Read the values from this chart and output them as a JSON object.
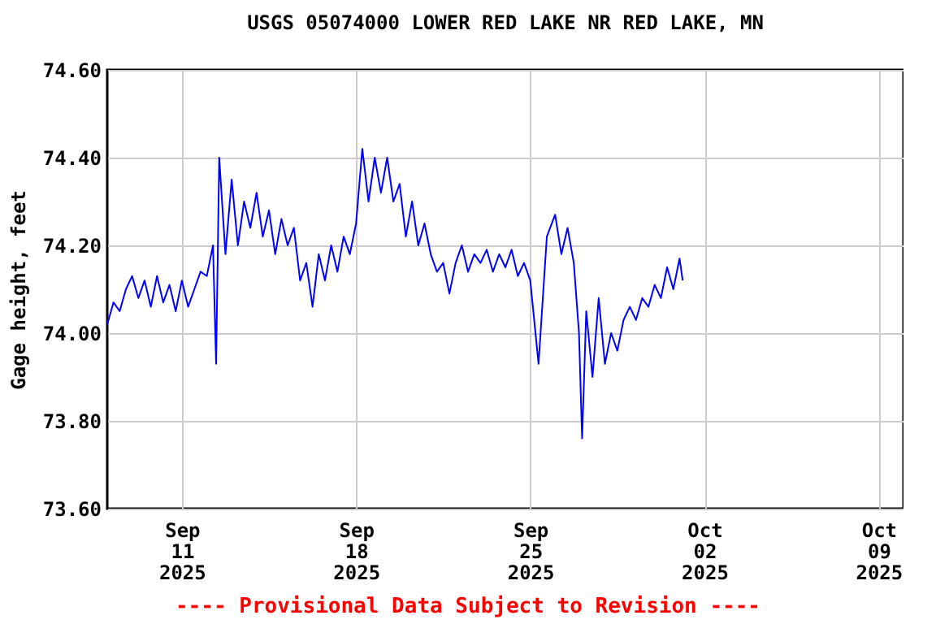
{
  "chart_data": {
    "type": "line",
    "title": "USGS 05074000 LOWER RED LAKE NR RED LAKE, MN",
    "ylabel": "Gage height, feet",
    "annotations": [
      "---- Provisional Data Subject to Revision ----"
    ],
    "xlim": [
      "2025-09-08",
      "2025-10-10"
    ],
    "xticks": [
      {
        "value": "2025-09-11",
        "label": "Sep\n11\n2025"
      },
      {
        "value": "2025-09-18",
        "label": "Sep\n18\n2025"
      },
      {
        "value": "2025-09-25",
        "label": "Sep\n25\n2025"
      },
      {
        "value": "2025-10-02",
        "label": "Oct\n02\n2025"
      },
      {
        "value": "2025-10-09",
        "label": "Oct\n09\n2025"
      }
    ],
    "ylim": [
      73.6,
      74.6
    ],
    "yticks": [
      {
        "value": 73.6,
        "label": "73.60"
      },
      {
        "value": 73.8,
        "label": "73.80"
      },
      {
        "value": 74.0,
        "label": "74.00"
      },
      {
        "value": 74.2,
        "label": "74.20"
      },
      {
        "value": 74.4,
        "label": "74.40"
      },
      {
        "value": 74.6,
        "label": "74.60"
      }
    ],
    "grid": true,
    "line_style": "solid",
    "series": [
      {
        "color": "#0000ff",
        "x": [
          "2025-09-08T00:00",
          "2025-09-08T06:00",
          "2025-09-08T12:00",
          "2025-09-08T18:00",
          "2025-09-09T00:00",
          "2025-09-09T06:00",
          "2025-09-09T12:00",
          "2025-09-09T18:00",
          "2025-09-10T00:00",
          "2025-09-10T06:00",
          "2025-09-10T12:00",
          "2025-09-10T18:00",
          "2025-09-11T00:00",
          "2025-09-11T06:00",
          "2025-09-11T12:00",
          "2025-09-11T18:00",
          "2025-09-12T00:00",
          "2025-09-12T06:00",
          "2025-09-12T09:00",
          "2025-09-12T12:00",
          "2025-09-12T18:00",
          "2025-09-13T00:00",
          "2025-09-13T06:00",
          "2025-09-13T12:00",
          "2025-09-13T18:00",
          "2025-09-14T00:00",
          "2025-09-14T06:00",
          "2025-09-14T12:00",
          "2025-09-14T18:00",
          "2025-09-15T00:00",
          "2025-09-15T06:00",
          "2025-09-15T12:00",
          "2025-09-15T18:00",
          "2025-09-16T00:00",
          "2025-09-16T06:00",
          "2025-09-16T12:00",
          "2025-09-16T18:00",
          "2025-09-17T00:00",
          "2025-09-17T06:00",
          "2025-09-17T12:00",
          "2025-09-17T18:00",
          "2025-09-18T00:00",
          "2025-09-18T06:00",
          "2025-09-18T12:00",
          "2025-09-18T18:00",
          "2025-09-19T00:00",
          "2025-09-19T06:00",
          "2025-09-19T12:00",
          "2025-09-19T18:00",
          "2025-09-20T00:00",
          "2025-09-20T06:00",
          "2025-09-20T12:00",
          "2025-09-20T18:00",
          "2025-09-21T00:00",
          "2025-09-21T06:00",
          "2025-09-21T12:00",
          "2025-09-21T18:00",
          "2025-09-22T00:00",
          "2025-09-22T06:00",
          "2025-09-22T12:00",
          "2025-09-22T18:00",
          "2025-09-23T00:00",
          "2025-09-23T06:00",
          "2025-09-23T12:00",
          "2025-09-23T18:00",
          "2025-09-24T00:00",
          "2025-09-24T06:00",
          "2025-09-24T12:00",
          "2025-09-24T18:00",
          "2025-09-25T00:00",
          "2025-09-25T08:00",
          "2025-09-25T16:00",
          "2025-09-26T00:00",
          "2025-09-26T06:00",
          "2025-09-26T12:00",
          "2025-09-26T18:00",
          "2025-09-26T23:00",
          "2025-09-27T02:00",
          "2025-09-27T06:00",
          "2025-09-27T12:00",
          "2025-09-27T18:00",
          "2025-09-28T00:00",
          "2025-09-28T06:00",
          "2025-09-28T12:00",
          "2025-09-28T18:00",
          "2025-09-29T00:00",
          "2025-09-29T06:00",
          "2025-09-29T12:00",
          "2025-09-29T18:00",
          "2025-09-30T00:00",
          "2025-09-30T06:00",
          "2025-09-30T12:00",
          "2025-09-30T18:00",
          "2025-10-01T00:00",
          "2025-10-01T03:00"
        ],
        "values": [
          74.02,
          74.07,
          74.05,
          74.1,
          74.13,
          74.08,
          74.12,
          74.06,
          74.13,
          74.07,
          74.11,
          74.05,
          74.12,
          74.06,
          74.1,
          74.14,
          74.13,
          74.2,
          73.93,
          74.4,
          74.18,
          74.35,
          74.2,
          74.3,
          74.24,
          74.32,
          74.22,
          74.28,
          74.18,
          74.26,
          74.2,
          74.24,
          74.12,
          74.16,
          74.06,
          74.18,
          74.12,
          74.2,
          74.14,
          74.22,
          74.18,
          74.25,
          74.42,
          74.3,
          74.4,
          74.32,
          74.4,
          74.3,
          74.34,
          74.22,
          74.3,
          74.2,
          74.25,
          74.18,
          74.14,
          74.16,
          74.09,
          74.16,
          74.2,
          74.14,
          74.18,
          74.16,
          74.19,
          74.14,
          74.18,
          74.15,
          74.19,
          74.13,
          74.16,
          74.12,
          73.93,
          74.22,
          74.27,
          74.18,
          74.24,
          74.16,
          74.0,
          73.76,
          74.05,
          73.9,
          74.08,
          73.93,
          74.0,
          73.96,
          74.03,
          74.06,
          74.03,
          74.08,
          74.06,
          74.11,
          74.08,
          74.15,
          74.1,
          74.17,
          74.12
        ]
      }
    ]
  }
}
